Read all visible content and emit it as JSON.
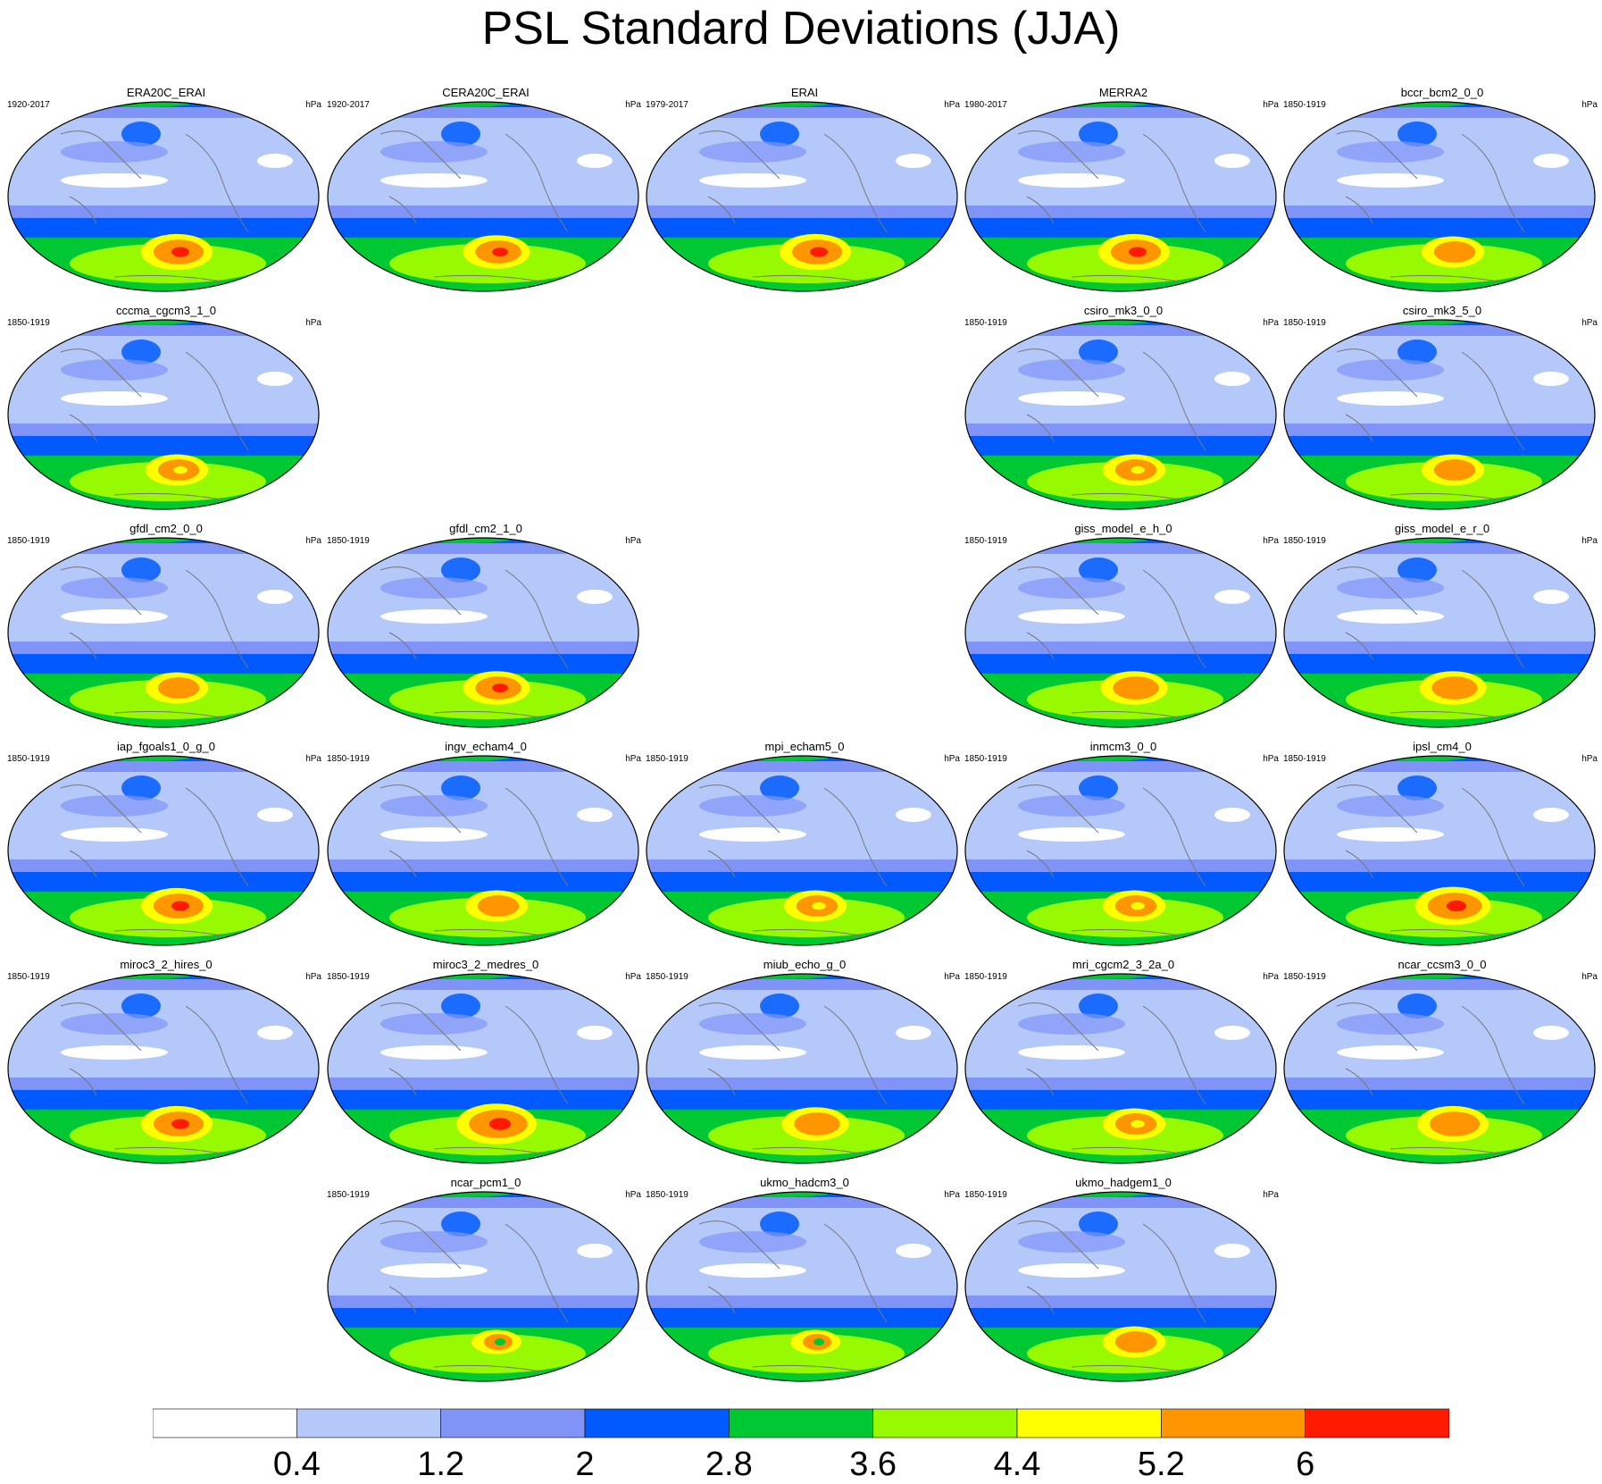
{
  "title": "PSL Standard Deviations (JJA)",
  "unit_label": "hPa",
  "panels": [
    {
      "name": "ERA20C_ERAI",
      "period": "1920-2017",
      "row": 0,
      "col": 0,
      "sh": 4.8,
      "peak": "red",
      "tropics": "white"
    },
    {
      "name": "CERA20C_ERAI",
      "period": "1920-2017",
      "row": 0,
      "col": 1,
      "sh": 4.6,
      "peak": "red",
      "tropics": "white"
    },
    {
      "name": "ERAI",
      "period": "1979-2017",
      "row": 0,
      "col": 2,
      "sh": 4.8,
      "peak": "red",
      "tropics": "white"
    },
    {
      "name": "MERRA2",
      "period": "1980-2017",
      "row": 0,
      "col": 3,
      "sh": 4.8,
      "peak": "red",
      "tropics": "white"
    },
    {
      "name": "bccr_bcm2_0_0",
      "period": "1850-1919",
      "row": 0,
      "col": 4,
      "sh": 4.4,
      "peak": "orange",
      "tropics": "white"
    },
    {
      "name": "cccma_cgcm3_1_0",
      "period": "1850-1919",
      "row": 1,
      "col": 0,
      "sh": 4.4,
      "peak": "yellow",
      "tropics": "white"
    },
    {
      "name": "csiro_mk3_0_0",
      "period": "1850-1919",
      "row": 1,
      "col": 3,
      "sh": 4.4,
      "peak": "yellow",
      "tropics": "white"
    },
    {
      "name": "csiro_mk3_5_0",
      "period": "1850-1919",
      "row": 1,
      "col": 4,
      "sh": 4.4,
      "peak": "orange",
      "tropics": "white"
    },
    {
      "name": "gfdl_cm2_0_0",
      "period": "1850-1919",
      "row": 2,
      "col": 0,
      "sh": 4.4,
      "peak": "orange",
      "tropics": "white"
    },
    {
      "name": "gfdl_cm2_1_0",
      "period": "1850-1919",
      "row": 2,
      "col": 1,
      "sh": 4.6,
      "peak": "red",
      "tropics": "white"
    },
    {
      "name": "giss_model_e_h_0",
      "period": "1850-1919",
      "row": 2,
      "col": 3,
      "sh": 4.6,
      "peak": "orange",
      "tropics": "white"
    },
    {
      "name": "giss_model_e_r_0",
      "period": "1850-1919",
      "row": 2,
      "col": 4,
      "sh": 4.6,
      "peak": "orange",
      "tropics": "white"
    },
    {
      "name": "iap_fgoals1_0_g_0",
      "period": "1850-1919",
      "row": 3,
      "col": 0,
      "sh": 4.8,
      "peak": "red",
      "tropics": "white"
    },
    {
      "name": "ingv_echam4_0",
      "period": "1850-1919",
      "row": 3,
      "col": 1,
      "sh": 4.4,
      "peak": "orange",
      "tropics": "white"
    },
    {
      "name": "mpi_echam5_0",
      "period": "1850-1919",
      "row": 3,
      "col": 2,
      "sh": 4.4,
      "peak": "yellow",
      "tropics": "white"
    },
    {
      "name": "inmcm3_0_0",
      "period": "1850-1919",
      "row": 3,
      "col": 3,
      "sh": 4.4,
      "peak": "yellow",
      "tropics": "white"
    },
    {
      "name": "ipsl_cm4_0",
      "period": "1850-1919",
      "row": 3,
      "col": 4,
      "sh": 5.0,
      "peak": "red",
      "tropics": "white"
    },
    {
      "name": "miroc3_2_hires_0",
      "period": "1850-1919",
      "row": 4,
      "col": 0,
      "sh": 4.8,
      "peak": "red",
      "tropics": "white"
    },
    {
      "name": "miroc3_2_medres_0",
      "period": "1850-1919",
      "row": 4,
      "col": 1,
      "sh": 5.2,
      "peak": "red",
      "tropics": "white"
    },
    {
      "name": "miub_echo_g_0",
      "period": "1850-1919",
      "row": 4,
      "col": 2,
      "sh": 4.6,
      "peak": "orange",
      "tropics": "white"
    },
    {
      "name": "mri_cgcm2_3_2a_0",
      "period": "1850-1919",
      "row": 4,
      "col": 3,
      "sh": 4.4,
      "peak": "yellow",
      "tropics": "white"
    },
    {
      "name": "ncar_ccsm3_0_0",
      "period": "1850-1919",
      "row": 4,
      "col": 4,
      "sh": 4.8,
      "peak": "orange",
      "tropics": "white"
    },
    {
      "name": "ncar_pcm1_0",
      "period": "1850-1919",
      "row": 5,
      "col": 1,
      "sh": 3.8,
      "peak": "green",
      "tropics": "white"
    },
    {
      "name": "ukmo_hadcm3_0",
      "period": "1850-1919",
      "row": 5,
      "col": 2,
      "sh": 3.8,
      "peak": "green",
      "tropics": "white"
    },
    {
      "name": "ukmo_hadgem1_0",
      "period": "1850-1919",
      "row": 5,
      "col": 3,
      "sh": 4.4,
      "peak": "orange",
      "tropics": "white"
    }
  ],
  "colorbar": {
    "colors": [
      "#ffffff",
      "#b4c8fa",
      "#8094f8",
      "#005aff",
      "#00c832",
      "#98fa00",
      "#ffff00",
      "#ff9600",
      "#ff1a00"
    ],
    "labels": [
      "0.4",
      "1.2",
      "2",
      "2.8",
      "3.6",
      "4.4",
      "5.2",
      "6"
    ]
  }
}
